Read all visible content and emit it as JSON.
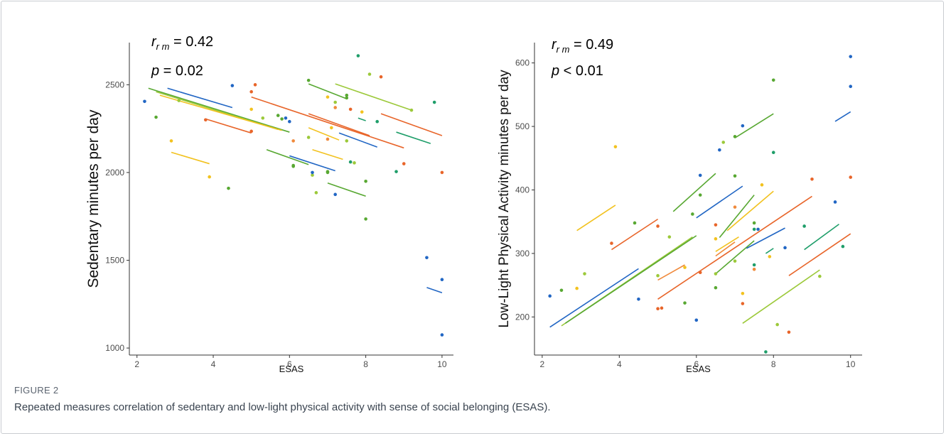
{
  "figure": {
    "label": "FIGURE 2",
    "caption": "Repeated measures correlation of sedentary and low-light physical activity with sense of social belonging (ESAS)."
  },
  "palette": [
    "#2166c4",
    "#e8652a",
    "#58a832",
    "#9cc93a",
    "#f2c21f",
    "#f08a3c",
    "#1f9e6a"
  ],
  "chart_data": [
    {
      "type": "scatter",
      "xlabel": "ESAS",
      "ylabel": "Sedentary minutes per day",
      "xlim": [
        1.8,
        10.3
      ],
      "ylim": [
        960,
        2740
      ],
      "xticks": [
        2,
        4,
        6,
        8,
        10
      ],
      "yticks": [
        1000,
        1500,
        2000,
        2500
      ],
      "annotation": {
        "r_label": "r",
        "r_sub": "r m",
        "r_value": " = 0.42",
        "p_label": "p",
        "p_value": "  = 0.02"
      },
      "points": [
        [
          2.2,
          2405,
          0
        ],
        [
          2.5,
          2315,
          2
        ],
        [
          2.9,
          2180,
          4
        ],
        [
          3.1,
          2410,
          3
        ],
        [
          3.8,
          2300,
          1
        ],
        [
          3.9,
          1975,
          4
        ],
        [
          4.4,
          1910,
          2
        ],
        [
          4.5,
          2495,
          0
        ],
        [
          5.0,
          2460,
          1
        ],
        [
          5.1,
          2500,
          1
        ],
        [
          5.0,
          2235,
          1
        ],
        [
          5.0,
          2360,
          4
        ],
        [
          5.3,
          2310,
          3
        ],
        [
          5.7,
          2325,
          2
        ],
        [
          5.8,
          2305,
          2
        ],
        [
          5.9,
          2310,
          0
        ],
        [
          6.0,
          2290,
          0
        ],
        [
          6.1,
          2180,
          5
        ],
        [
          6.1,
          2040,
          2
        ],
        [
          6.1,
          2035,
          2
        ],
        [
          6.5,
          2525,
          2
        ],
        [
          6.5,
          2200,
          3
        ],
        [
          6.6,
          1985,
          3
        ],
        [
          6.6,
          2000,
          0
        ],
        [
          6.7,
          1885,
          3
        ],
        [
          7.0,
          2430,
          4
        ],
        [
          7.0,
          2190,
          5
        ],
        [
          7.0,
          2005,
          2
        ],
        [
          7.0,
          2000,
          2
        ],
        [
          7.1,
          2255,
          4
        ],
        [
          7.2,
          2400,
          3
        ],
        [
          7.2,
          2370,
          5
        ],
        [
          7.2,
          1875,
          0
        ],
        [
          7.5,
          2440,
          2
        ],
        [
          7.5,
          2425,
          2
        ],
        [
          7.5,
          2180,
          3
        ],
        [
          7.6,
          2360,
          1
        ],
        [
          7.6,
          2060,
          6
        ],
        [
          7.7,
          2055,
          3
        ],
        [
          7.8,
          2665,
          6
        ],
        [
          7.9,
          2345,
          4
        ],
        [
          8.0,
          1950,
          2
        ],
        [
          8.0,
          1735,
          2
        ],
        [
          8.1,
          2560,
          3
        ],
        [
          8.3,
          2290,
          6
        ],
        [
          8.4,
          2545,
          1
        ],
        [
          8.8,
          2005,
          6
        ],
        [
          9.0,
          2050,
          1
        ],
        [
          9.2,
          2355,
          3
        ],
        [
          9.6,
          1515,
          0
        ],
        [
          9.8,
          2400,
          6
        ],
        [
          10.0,
          2000,
          1
        ],
        [
          10.0,
          1390,
          0
        ],
        [
          10.0,
          1075,
          0
        ]
      ],
      "fit_lines": [
        [
          2.3,
          2480,
          6.0,
          2230,
          2
        ],
        [
          2.5,
          2460,
          5.7,
          2245,
          3
        ],
        [
          2.6,
          2440,
          5.8,
          2240,
          4
        ],
        [
          2.8,
          2480,
          4.5,
          2370,
          0
        ],
        [
          2.9,
          2115,
          3.9,
          2050,
          4
        ],
        [
          3.8,
          2305,
          5.0,
          2225,
          1
        ],
        [
          5.0,
          2430,
          9.0,
          2140,
          1
        ],
        [
          5.4,
          2130,
          6.5,
          2045,
          2
        ],
        [
          6.0,
          2095,
          7.2,
          2010,
          0
        ],
        [
          6.5,
          2335,
          8.1,
          2210,
          1
        ],
        [
          6.5,
          2505,
          7.5,
          2420,
          2
        ],
        [
          6.5,
          2255,
          7.3,
          2185,
          4
        ],
        [
          6.6,
          2130,
          7.4,
          2075,
          4
        ],
        [
          7.0,
          1940,
          8.0,
          1865,
          2
        ],
        [
          7.2,
          2505,
          9.2,
          2355,
          3
        ],
        [
          7.3,
          2225,
          8.3,
          2145,
          0
        ],
        [
          7.8,
          2310,
          8.0,
          2295,
          6
        ],
        [
          8.4,
          2335,
          10.0,
          2210,
          1
        ],
        [
          8.8,
          2230,
          9.7,
          2165,
          6
        ],
        [
          9.6,
          1345,
          10.0,
          1315,
          0
        ]
      ]
    },
    {
      "type": "scatter",
      "xlabel": "ESAS",
      "ylabel": "Low-Light Physical Activity minutes per day",
      "xlim": [
        1.8,
        10.3
      ],
      "ylim": [
        140,
        632
      ],
      "xticks": [
        2,
        4,
        6,
        8,
        10
      ],
      "yticks": [
        200,
        300,
        400,
        500,
        600
      ],
      "annotation": {
        "r_label": "r",
        "r_sub": "r m",
        "r_value": " = 0.49",
        "p_label": "p",
        "p_value": " < 0.01"
      },
      "points": [
        [
          2.2,
          233,
          0
        ],
        [
          2.5,
          242,
          2
        ],
        [
          2.9,
          245,
          4
        ],
        [
          3.1,
          268,
          3
        ],
        [
          3.8,
          316,
          1
        ],
        [
          3.9,
          468,
          4
        ],
        [
          4.4,
          348,
          2
        ],
        [
          4.5,
          228,
          0
        ],
        [
          5.0,
          343,
          1
        ],
        [
          5.0,
          265,
          3
        ],
        [
          5.0,
          213,
          1
        ],
        [
          5.1,
          214,
          1
        ],
        [
          5.3,
          326,
          3
        ],
        [
          5.7,
          222,
          2
        ],
        [
          5.7,
          278,
          4
        ],
        [
          5.9,
          362,
          2
        ],
        [
          6.0,
          195,
          0
        ],
        [
          6.1,
          423,
          0
        ],
        [
          6.1,
          392,
          2
        ],
        [
          6.1,
          270,
          1
        ],
        [
          6.5,
          345,
          1
        ],
        [
          6.5,
          323,
          4
        ],
        [
          6.5,
          268,
          3
        ],
        [
          6.5,
          246,
          2
        ],
        [
          6.6,
          463,
          0
        ],
        [
          6.7,
          475,
          3
        ],
        [
          7.0,
          484,
          2
        ],
        [
          7.0,
          422,
          2
        ],
        [
          7.0,
          373,
          5
        ],
        [
          7.0,
          288,
          3
        ],
        [
          7.2,
          501,
          0
        ],
        [
          7.2,
          237,
          4
        ],
        [
          7.2,
          221,
          1
        ],
        [
          7.5,
          348,
          2
        ],
        [
          7.5,
          338,
          6
        ],
        [
          7.5,
          282,
          6
        ],
        [
          7.5,
          275,
          5
        ],
        [
          7.6,
          338,
          0
        ],
        [
          7.7,
          408,
          4
        ],
        [
          7.8,
          145,
          6
        ],
        [
          7.9,
          295,
          4
        ],
        [
          8.0,
          573,
          2
        ],
        [
          8.0,
          459,
          6
        ],
        [
          8.1,
          188,
          3
        ],
        [
          8.3,
          309,
          0
        ],
        [
          8.4,
          176,
          1
        ],
        [
          8.8,
          343,
          6
        ],
        [
          9.0,
          417,
          1
        ],
        [
          9.2,
          264,
          3
        ],
        [
          9.6,
          381,
          0
        ],
        [
          9.8,
          311,
          6
        ],
        [
          10.0,
          610,
          0
        ],
        [
          10.0,
          563,
          0
        ],
        [
          10.0,
          420,
          1
        ]
      ],
      "fit_lines": [
        [
          2.2,
          184,
          4.5,
          276,
          0
        ],
        [
          2.5,
          186,
          5.9,
          326,
          3
        ],
        [
          2.6,
          190,
          6.0,
          328,
          2
        ],
        [
          2.9,
          336,
          3.9,
          376,
          4
        ],
        [
          3.8,
          306,
          5.0,
          354,
          1
        ],
        [
          5.0,
          228,
          9.0,
          390,
          1
        ],
        [
          5.0,
          258,
          5.7,
          282,
          5
        ],
        [
          5.4,
          366,
          6.5,
          426,
          2
        ],
        [
          6.0,
          356,
          7.2,
          406,
          0
        ],
        [
          6.5,
          296,
          7.0,
          318,
          5
        ],
        [
          6.5,
          303,
          7.1,
          326,
          4
        ],
        [
          6.5,
          268,
          7.5,
          320,
          2
        ],
        [
          6.6,
          325,
          7.5,
          392,
          2
        ],
        [
          6.8,
          336,
          8.0,
          398,
          4
        ],
        [
          7.0,
          482,
          8.0,
          520,
          2
        ],
        [
          7.2,
          190,
          9.2,
          274,
          3
        ],
        [
          7.3,
          308,
          8.3,
          340,
          0
        ],
        [
          7.8,
          300,
          8.0,
          308,
          6
        ],
        [
          8.4,
          265,
          10.0,
          331,
          1
        ],
        [
          8.8,
          306,
          9.7,
          346,
          6
        ],
        [
          9.6,
          508,
          10.0,
          523,
          0
        ]
      ]
    }
  ]
}
